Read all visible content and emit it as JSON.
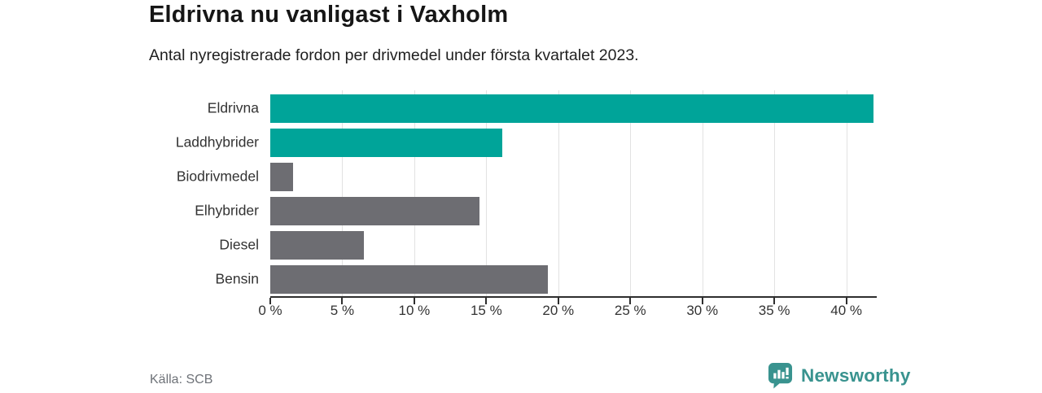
{
  "header": {
    "title": "Eldrivna nu vanligast i Vaxholm",
    "subtitle": "Antal nyregistrerade fordon per drivmedel under första kvartalet 2023."
  },
  "chart_data": {
    "type": "bar",
    "orientation": "horizontal",
    "title": "Eldrivna nu vanligast i Vaxholm",
    "subtitle": "Antal nyregistrerade fordon per drivmedel under första kvartalet 2023.",
    "categories": [
      "Eldrivna",
      "Laddhybrider",
      "Biodrivmedel",
      "Elhybrider",
      "Diesel",
      "Bensin"
    ],
    "values": [
      41.9,
      16.1,
      1.6,
      14.5,
      6.5,
      19.3
    ],
    "bar_colors": [
      "#00a499",
      "#00a499",
      "#6d6d72",
      "#6d6d72",
      "#6d6d72",
      "#6d6d72"
    ],
    "unit": "%",
    "xlim": [
      0,
      42
    ],
    "x_ticks": [
      0,
      5,
      10,
      15,
      20,
      25,
      30,
      35,
      40
    ],
    "x_tick_labels": [
      "0 %",
      "5 %",
      "10 %",
      "15 %",
      "20 %",
      "25 %",
      "30 %",
      "35 %",
      "40 %"
    ],
    "grid": "vertical-only",
    "legend": "none",
    "accent_color": "#00a499",
    "muted_color": "#6d6d72"
  },
  "footer": {
    "source": "Källa: SCB",
    "brand": "Newsworthy",
    "brand_color": "#39938f",
    "logo_icon": "bar-chart-speech-bubble-icon"
  }
}
